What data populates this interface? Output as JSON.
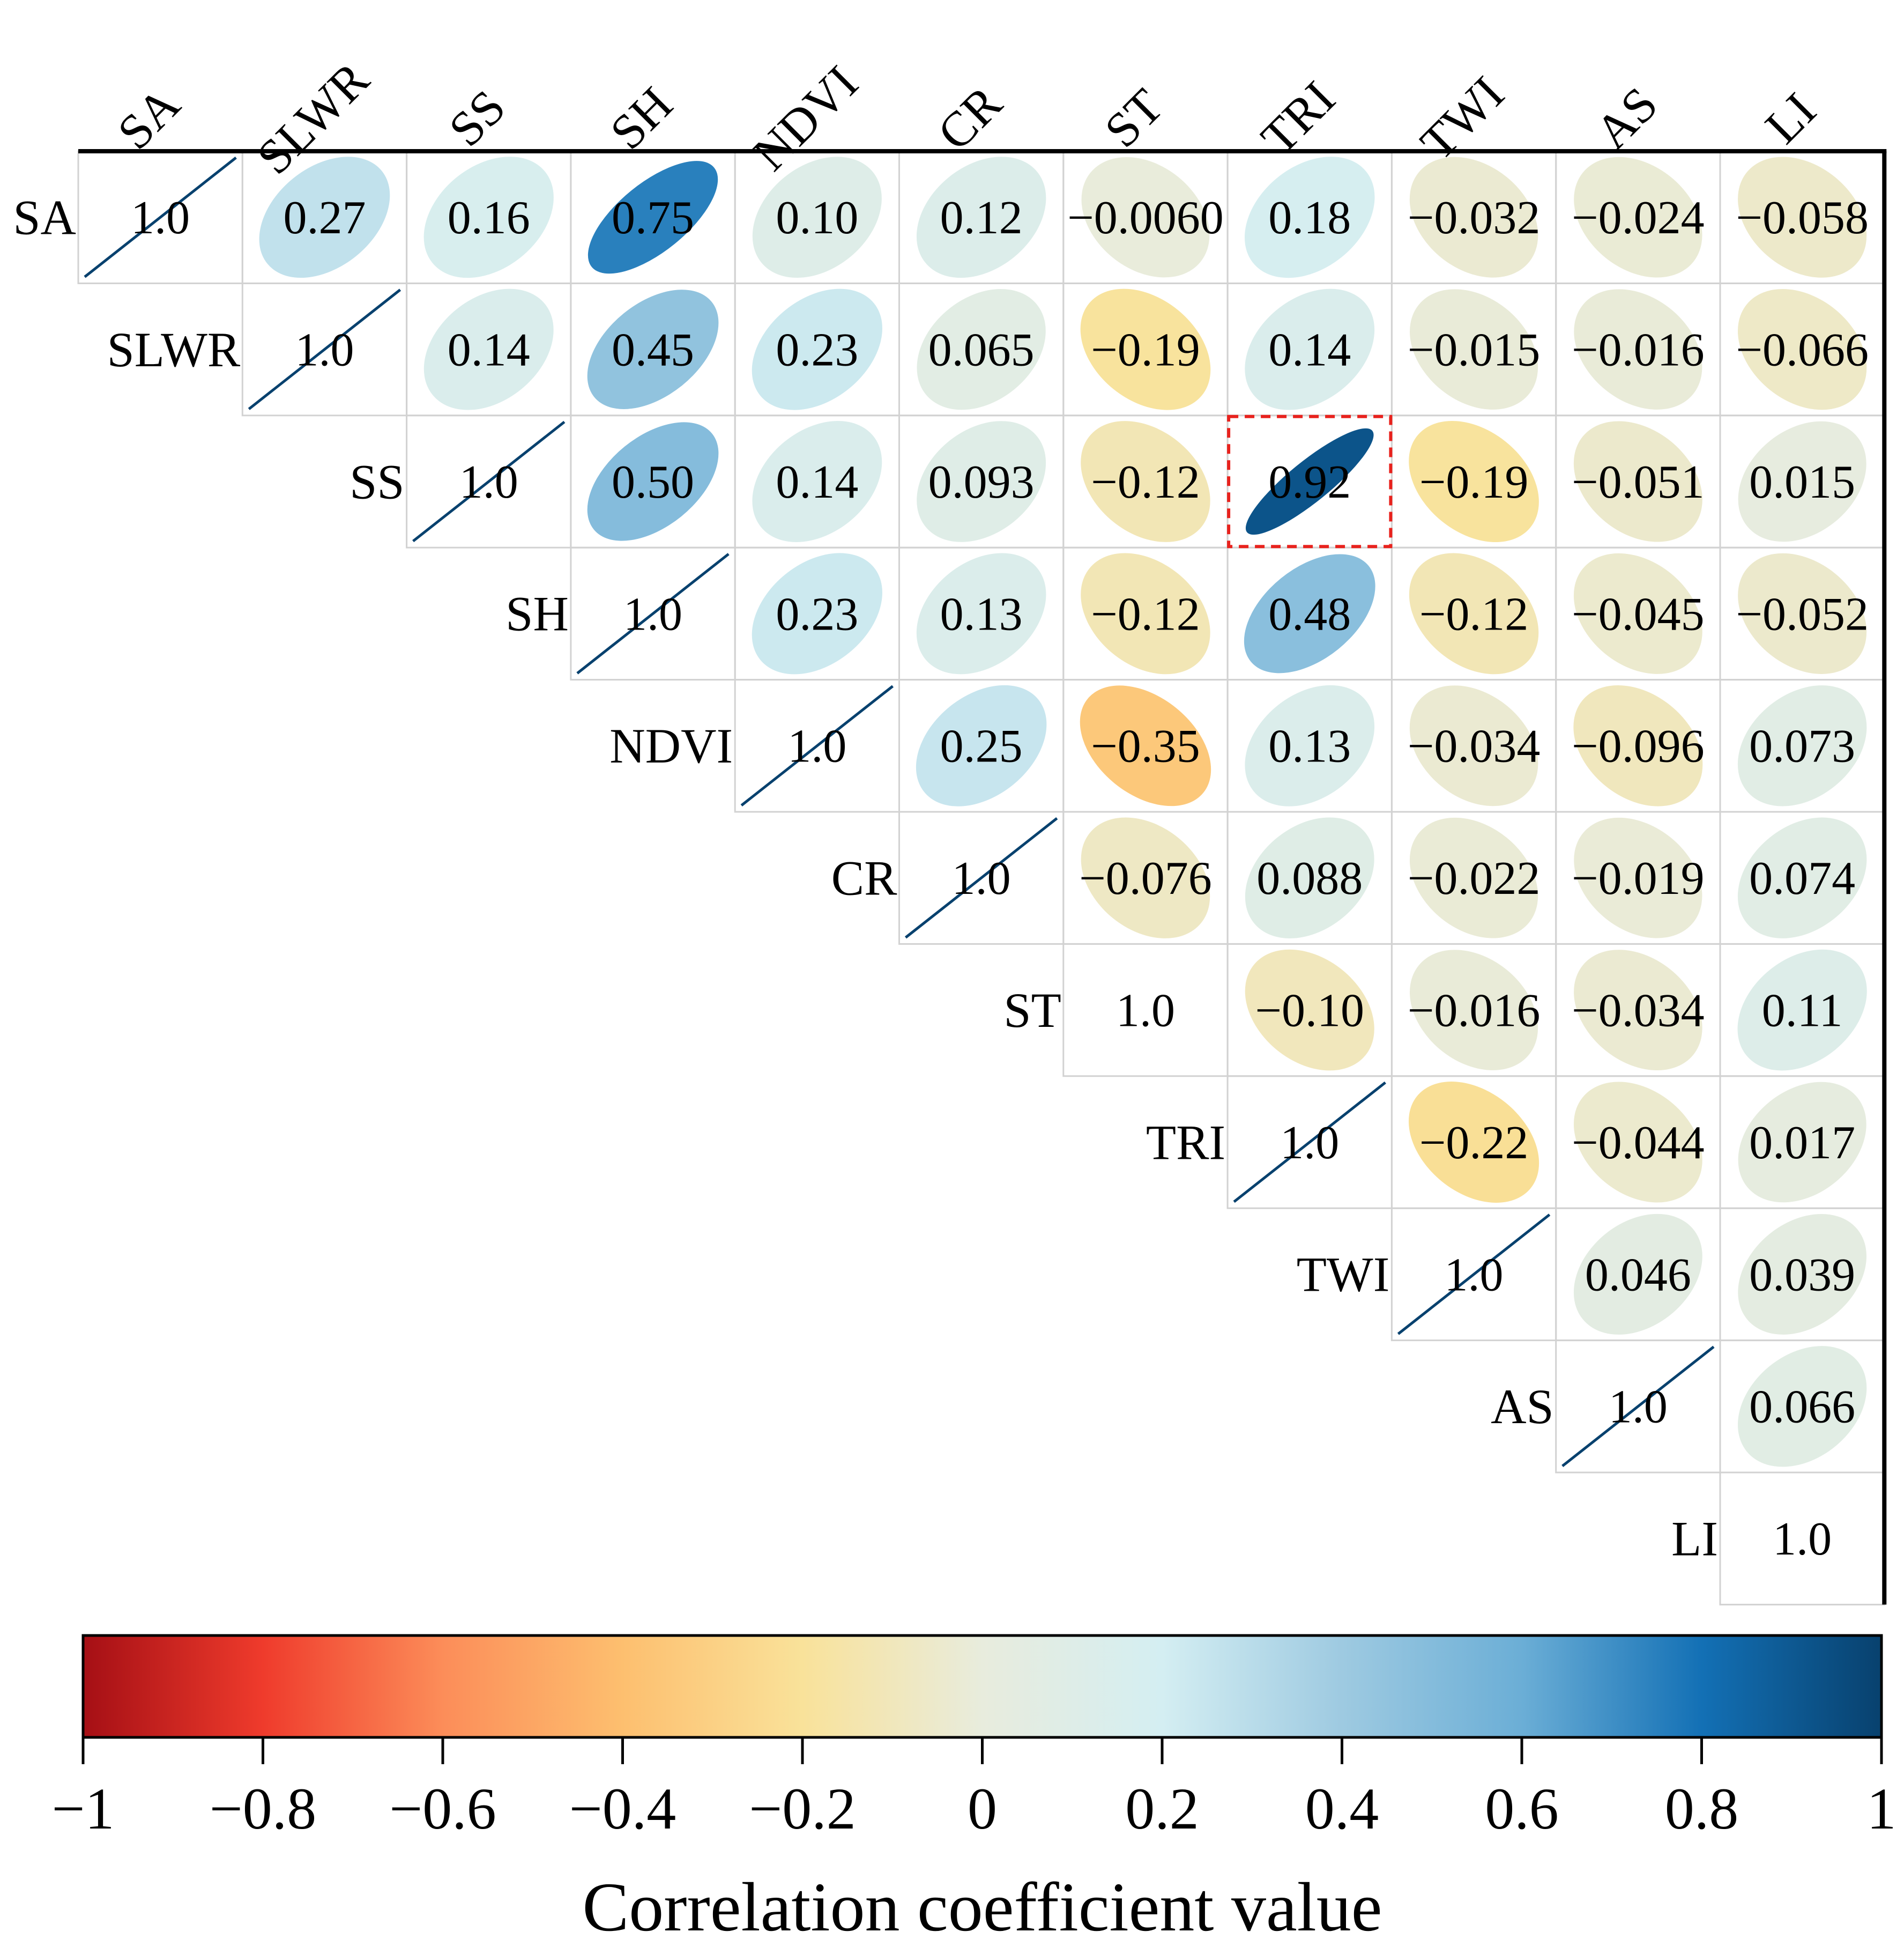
{
  "chart_data": {
    "type": "heatmap",
    "subtype": "correlation-ellipse-upper-triangle",
    "variables": [
      "SA",
      "SLWR",
      "SS",
      "SH",
      "NDVI",
      "CR",
      "ST",
      "TRI",
      "TWI",
      "AS",
      "LI"
    ],
    "diagonal_label": "1.0",
    "matrix_labels": [
      [
        "1.0",
        "0.27",
        "0.16",
        "0.75",
        "0.10",
        "0.12",
        "−0.0060",
        "0.18",
        "−0.032",
        "−0.024",
        "−0.058"
      ],
      [
        null,
        "1.0",
        "0.14",
        "0.45",
        "0.23",
        "0.065",
        "−0.19",
        "0.14",
        "−0.015",
        "−0.016",
        "−0.066"
      ],
      [
        null,
        null,
        "1.0",
        "0.50",
        "0.14",
        "0.093",
        "−0.12",
        "0.92",
        "−0.19",
        "−0.051",
        "0.015"
      ],
      [
        null,
        null,
        null,
        "1.0",
        "0.23",
        "0.13",
        "−0.12",
        "0.48",
        "−0.12",
        "−0.045",
        "−0.052"
      ],
      [
        null,
        null,
        null,
        null,
        "1.0",
        "0.25",
        "−0.35",
        "0.13",
        "−0.034",
        "−0.096",
        "0.073"
      ],
      [
        null,
        null,
        null,
        null,
        null,
        "1.0",
        "−0.076",
        "0.088",
        "−0.022",
        "−0.019",
        "0.074"
      ],
      [
        null,
        null,
        null,
        null,
        null,
        null,
        "1.0",
        "−0.10",
        "−0.016",
        "−0.034",
        "0.11"
      ],
      [
        null,
        null,
        null,
        null,
        null,
        null,
        null,
        "1.0",
        "−0.22",
        "−0.044",
        "0.017"
      ],
      [
        null,
        null,
        null,
        null,
        null,
        null,
        null,
        null,
        "1.0",
        "0.046",
        "0.039"
      ],
      [
        null,
        null,
        null,
        null,
        null,
        null,
        null,
        null,
        null,
        "1.0",
        "0.066"
      ],
      [
        null,
        null,
        null,
        null,
        null,
        null,
        null,
        null,
        null,
        null,
        "1.0"
      ]
    ],
    "diagonal_with_line": [
      true,
      true,
      true,
      true,
      true,
      true,
      false,
      true,
      true,
      true,
      false
    ],
    "highlight": {
      "row": "SS",
      "col": "TRI",
      "value": 0.92,
      "style": "red-dashed-box"
    },
    "colorbar": {
      "range": [
        -1,
        1
      ],
      "ticks": [
        -1,
        -0.8,
        -0.6,
        -0.4,
        -0.2,
        0,
        0.2,
        0.4,
        0.6,
        0.8,
        1
      ],
      "tick_labels": [
        "−1",
        "−0.8",
        "−0.6",
        "−0.4",
        "−0.2",
        "0",
        "0.2",
        "0.4",
        "0.6",
        "0.8",
        "1"
      ],
      "label": "Correlation coefficient value",
      "colors": [
        "#a50f15",
        "#ef3b2c",
        "#fc8d59",
        "#fdbf6f",
        "#f9e29a",
        "#e8ecdd",
        "#d4eef2",
        "#9ecae1",
        "#6baed6",
        "#1370b5",
        "#08416e"
      ]
    },
    "xlabel": "",
    "ylabel": "",
    "grid": true
  }
}
